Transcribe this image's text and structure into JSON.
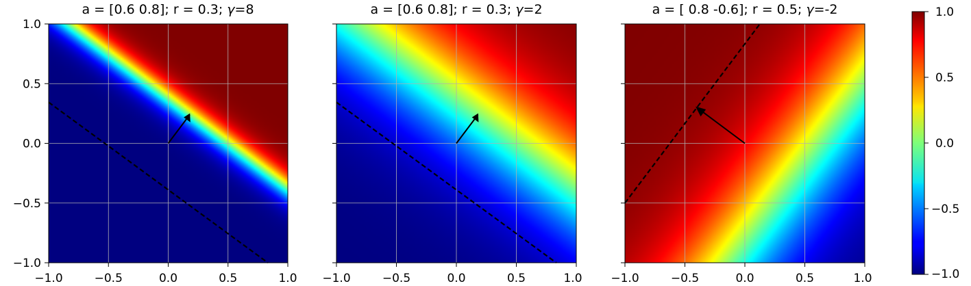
{
  "chart_data": [
    {
      "type": "heatmap",
      "title_text": "a = [0.6 0.8]; r = 0.3; ",
      "title_gamma_symbol": "γ",
      "title_gamma_text": "=8",
      "a": [
        0.6,
        0.8
      ],
      "r": 0.3,
      "gamma": 8,
      "xlim": [
        -1.0,
        1.0
      ],
      "ylim": [
        -1.0,
        1.0
      ],
      "xticks": [
        -1.0,
        -0.5,
        0.0,
        0.5,
        1.0
      ],
      "yticks": [
        -1.0,
        -0.5,
        0.0,
        0.5,
        1.0
      ],
      "xtick_labels": [
        "−1.0",
        "−0.5",
        "0.0",
        "0.5",
        "1.0"
      ],
      "ytick_labels": [
        "−1.0",
        "−0.5",
        "0.0",
        "0.5",
        "1.0"
      ],
      "show_yticklabels": true,
      "grid": true,
      "boundary_line": {
        "from": [
          -1.0,
          0.375
        ],
        "to": [
          0.8333,
          -1.0
        ],
        "style": "dashed"
      },
      "arrow": {
        "from": [
          0.0,
          0.0
        ],
        "to": [
          0.18,
          0.24
        ]
      }
    },
    {
      "type": "heatmap",
      "title_text": "a = [0.6 0.8]; r = 0.3; ",
      "title_gamma_symbol": "γ",
      "title_gamma_text": "=2",
      "a": [
        0.6,
        0.8
      ],
      "r": 0.3,
      "gamma": 2,
      "xlim": [
        -1.0,
        1.0
      ],
      "ylim": [
        -1.0,
        1.0
      ],
      "xticks": [
        -1.0,
        -0.5,
        0.0,
        0.5,
        1.0
      ],
      "yticks": [
        -1.0,
        -0.5,
        0.0,
        0.5,
        1.0
      ],
      "xtick_labels": [
        "−1.0",
        "−0.5",
        "0.0",
        "0.5",
        "1.0"
      ],
      "ytick_labels": [],
      "show_yticklabels": false,
      "grid": true,
      "boundary_line": {
        "from": [
          -1.0,
          0.375
        ],
        "to": [
          0.8333,
          -1.0
        ],
        "style": "dashed"
      },
      "arrow": {
        "from": [
          0.0,
          0.0
        ],
        "to": [
          0.18,
          0.24
        ]
      }
    },
    {
      "type": "heatmap",
      "title_text": "a = [ 0.8 -0.6]; r = 0.5; ",
      "title_gamma_symbol": "γ",
      "title_gamma_text": "=-2",
      "a": [
        0.8,
        -0.6
      ],
      "r": 0.5,
      "gamma": -2,
      "xlim": [
        -1.0,
        1.0
      ],
      "ylim": [
        -1.0,
        1.0
      ],
      "xticks": [
        -1.0,
        -0.5,
        0.0,
        0.5,
        1.0
      ],
      "yticks": [
        -1.0,
        -0.5,
        0.0,
        0.5,
        1.0
      ],
      "xtick_labels": [
        "−1.0",
        "−0.5",
        "0.0",
        "0.5",
        "1.0"
      ],
      "ytick_labels": [],
      "show_yticklabels": false,
      "grid": true,
      "boundary_line": {
        "from": [
          -1.0,
          -0.5
        ],
        "to": [
          0.125,
          1.0
        ],
        "style": "dashed"
      },
      "arrow": {
        "from": [
          0.0,
          0.0
        ],
        "to": [
          -0.4,
          0.3
        ]
      }
    }
  ],
  "colorbar": {
    "colormap": "jet",
    "range": [
      -1.0,
      1.0
    ],
    "ticks": [
      1.0,
      0.5,
      0.0,
      -0.5,
      -1.0
    ],
    "tick_labels": [
      "1.0",
      "0.5",
      "0.0",
      "−0.5",
      "−1.0"
    ]
  }
}
